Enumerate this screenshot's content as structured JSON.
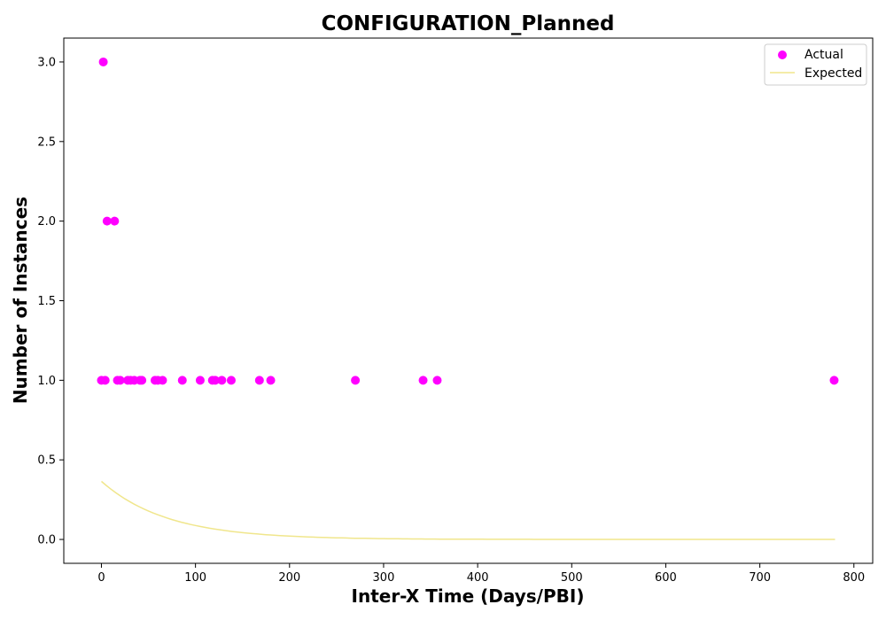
{
  "chart_data": {
    "type": "scatter",
    "title": "CONFIGURATION_Planned",
    "xlabel": "Inter-X Time (Days/PBI)",
    "ylabel": "Number of Instances",
    "xlim": [
      -40,
      820
    ],
    "ylim": [
      -0.15,
      3.15
    ],
    "xticks": [
      0,
      100,
      200,
      300,
      400,
      500,
      600,
      700,
      800
    ],
    "yticks": [
      0.0,
      0.5,
      1.0,
      1.5,
      2.0,
      2.5,
      3.0
    ],
    "xtick_labels": [
      "0",
      "100",
      "200",
      "300",
      "400",
      "500",
      "600",
      "700",
      "800"
    ],
    "ytick_labels": [
      "0.0",
      "0.5",
      "1.0",
      "1.5",
      "2.0",
      "2.5",
      "3.0"
    ],
    "grid": false,
    "legend_position": "top-right",
    "series": [
      {
        "name": "Actual",
        "kind": "scatter",
        "color": "#ff00ff",
        "points": [
          [
            2,
            3
          ],
          [
            6,
            2
          ],
          [
            14,
            2
          ],
          [
            0,
            1
          ],
          [
            4,
            1
          ],
          [
            17,
            1
          ],
          [
            20,
            1
          ],
          [
            28,
            1
          ],
          [
            31,
            1
          ],
          [
            35,
            1
          ],
          [
            41,
            1
          ],
          [
            43,
            1
          ],
          [
            57,
            1
          ],
          [
            60,
            1
          ],
          [
            65,
            1
          ],
          [
            86,
            1
          ],
          [
            105,
            1
          ],
          [
            118,
            1
          ],
          [
            121,
            1
          ],
          [
            128,
            1
          ],
          [
            138,
            1
          ],
          [
            168,
            1
          ],
          [
            180,
            1
          ],
          [
            270,
            1
          ],
          [
            342,
            1
          ],
          [
            357,
            1
          ],
          [
            779,
            1
          ]
        ]
      },
      {
        "name": "Expected",
        "kind": "line",
        "color": "#f0e68c",
        "x_range": [
          0,
          780
        ],
        "function": "exponential_decay",
        "amplitude": 0.365,
        "decay_scale": 70
      }
    ]
  }
}
